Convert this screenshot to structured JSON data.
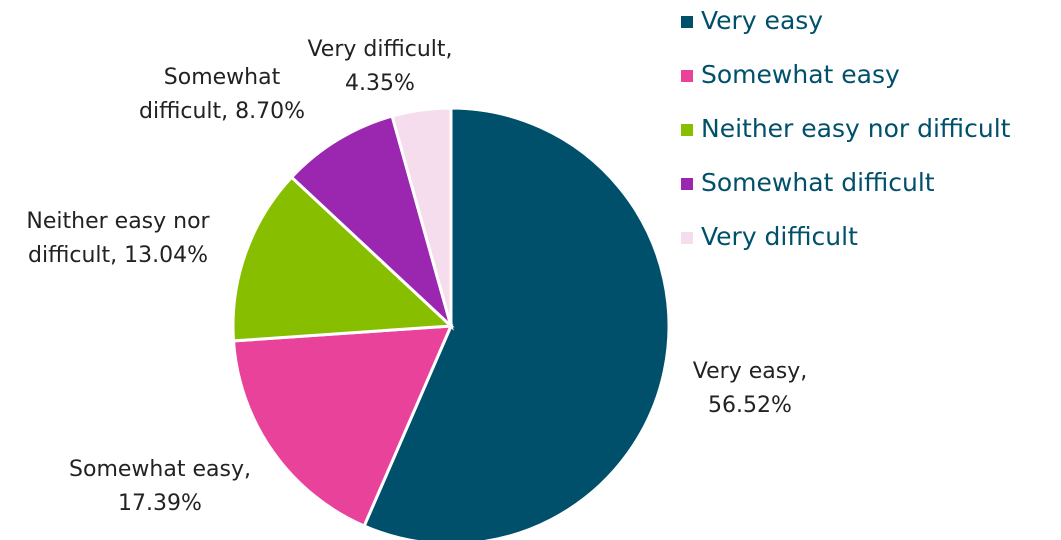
{
  "chart_data": {
    "type": "pie",
    "categories": [
      "Very easy",
      "Somewhat easy",
      "Neither easy nor difficult",
      "Somewhat difficult",
      "Very difficult"
    ],
    "values": [
      56.52,
      17.39,
      13.04,
      8.7,
      4.35
    ],
    "value_labels": [
      [
        "Very easy,",
        "56.52%"
      ],
      [
        "Somewhat easy,",
        "17.39%"
      ],
      [
        "Neither easy nor",
        "difficult, 13.04%"
      ],
      [
        "Somewhat",
        "difficult, 8.70%"
      ],
      [
        "Very difficult,",
        "4.35%"
      ]
    ],
    "colors": [
      "#00506b",
      "#e8429a",
      "#88be00",
      "#9b27b0",
      "#f5dded"
    ],
    "legend": "right"
  }
}
